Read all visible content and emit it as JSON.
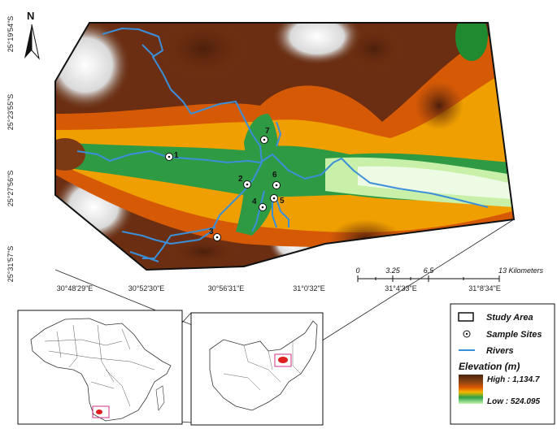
{
  "map": {
    "north_label": "N",
    "latitude_labels": [
      "25°19'54\"S",
      "25°23'55\"S",
      "25°27'56\"S",
      "25°31'57\"S"
    ],
    "longitude_labels": [
      "30°48'29\"E",
      "30°52'30\"E",
      "30°56'31\"E",
      "31°0'32\"E",
      "31°4'33\"E",
      "31°8'34\"E"
    ],
    "sample_sites": [
      {
        "label": "1"
      },
      {
        "label": "2"
      },
      {
        "label": "3"
      },
      {
        "label": "4"
      },
      {
        "label": "5"
      },
      {
        "label": "6"
      },
      {
        "label": "7"
      }
    ],
    "scale_bar": {
      "ticks": [
        "0",
        "3.25",
        "6.5",
        "13 Kilometers"
      ]
    }
  },
  "legend": {
    "study_area": "Study Area",
    "sample_sites": "Sample Sites",
    "rivers": "Rivers",
    "elevation_title": "Elevation (m)",
    "high": "High : 1,134.7",
    "low": "Low : 524.095"
  },
  "colors": {
    "river": "#3b8fd8",
    "study_area_highlight": "#e02020",
    "inset_box": "#d0308a",
    "ramp": [
      "#ffffff",
      "#c8c8c8",
      "#5a2a14",
      "#8b4513",
      "#e05a00",
      "#f2b800",
      "#1f9a3a",
      "#b8f0a0"
    ]
  }
}
